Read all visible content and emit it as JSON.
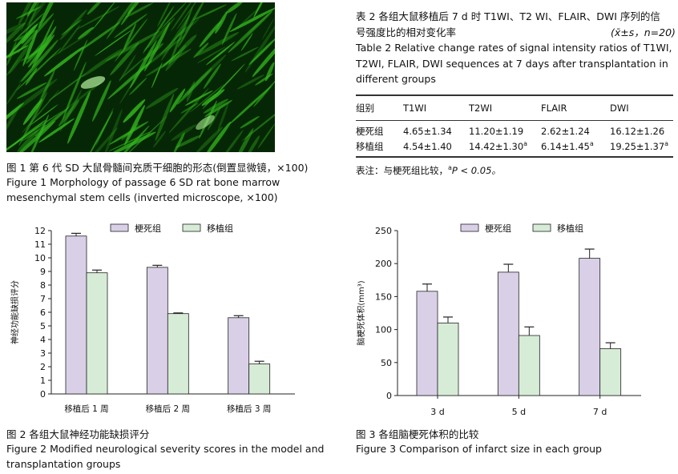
{
  "figure1": {
    "caption_zh": "图 1    第 6 代 SD 大鼠骨髓间充质干细胞的形态(倒置显微镜，×100)",
    "caption_en_line1": "Figure 1    Morphology of passage 6 SD rat bone marrow",
    "caption_en_line2": "mesenchymal stem cells (inverted microscope, ×100)"
  },
  "table2": {
    "title_zh_line1": "表 2    各组大鼠移植后 7 d 时 T1WI、T2 WI、FLAIR、DWI 序列的信",
    "title_zh_line2": "号强度比的相对变化率",
    "stat_note": "(x̄±s，n=20)",
    "title_en_line1": "Table 2    Relative change rates of signal intensity ratios of T1WI,",
    "title_en_line2": "T2WI, FLAIR, DWI sequences at 7 days after transplantation in",
    "title_en_line3": "different groups",
    "headers": [
      "组别",
      "T1WI",
      "T2WI",
      "FLAIR",
      "DWI"
    ],
    "row1": [
      "梗死组",
      "4.65±1.34",
      "11.20±1.19",
      "2.62±1.24",
      "16.12±1.26"
    ],
    "row2": [
      "移植组",
      "4.54±1.40",
      "14.42±1.30",
      "6.14±1.45",
      "19.25±1.37"
    ],
    "sup_mark": "a",
    "note_prefix": "表注：与梗死组比较，",
    "note_sup": "a",
    "note_rest": "P < 0.05。"
  },
  "figure2": {
    "caption_zh": "图 2    各组大鼠神经功能缺损评分",
    "caption_en_line1": "Figure 2    Modified neurological severity scores in the model and",
    "caption_en_line2": "transplantation groups"
  },
  "figure3": {
    "caption_zh": "图 3    各组脑梗死体积的比较",
    "caption_en": "Figure 3    Comparison of infarct size in each group"
  },
  "colors": {
    "infarct": "#d9d0e8",
    "transplant": "#d6ecd6",
    "bar_stroke": "#222222",
    "micro_green": "#34b81e"
  },
  "chart_data": [
    {
      "type": "bar",
      "title": "",
      "xlabel": "",
      "ylabel": "神经功能缺损评分",
      "categories": [
        "移植后 1 周",
        "移植后 2 周",
        "移植后 3 周"
      ],
      "series": [
        {
          "name": "梗死组",
          "values": [
            11.6,
            9.3,
            5.6
          ],
          "errors": [
            0.2,
            0.15,
            0.15
          ]
        },
        {
          "name": "移植组",
          "values": [
            8.9,
            5.9,
            2.2
          ],
          "errors": [
            0.2,
            0.05,
            0.2
          ]
        }
      ],
      "ylim": [
        0,
        12
      ],
      "yticks": [
        0,
        1,
        2,
        3,
        4,
        5,
        6,
        7,
        8,
        9,
        10,
        11,
        12
      ],
      "legend": "top-center",
      "grid": false
    },
    {
      "type": "bar",
      "title": "",
      "xlabel": "",
      "ylabel": "脑梗死体积(mm³)",
      "categories": [
        "3 d",
        "5 d",
        "7 d"
      ],
      "series": [
        {
          "name": "梗死组",
          "values": [
            158,
            187,
            208
          ],
          "errors": [
            11,
            12,
            14
          ]
        },
        {
          "name": "移植组",
          "values": [
            110,
            91,
            71
          ],
          "errors": [
            9,
            13,
            9
          ]
        }
      ],
      "ylim": [
        0,
        250
      ],
      "yticks": [
        0,
        50,
        100,
        150,
        200,
        250
      ],
      "legend": "top-center",
      "grid": false
    }
  ]
}
